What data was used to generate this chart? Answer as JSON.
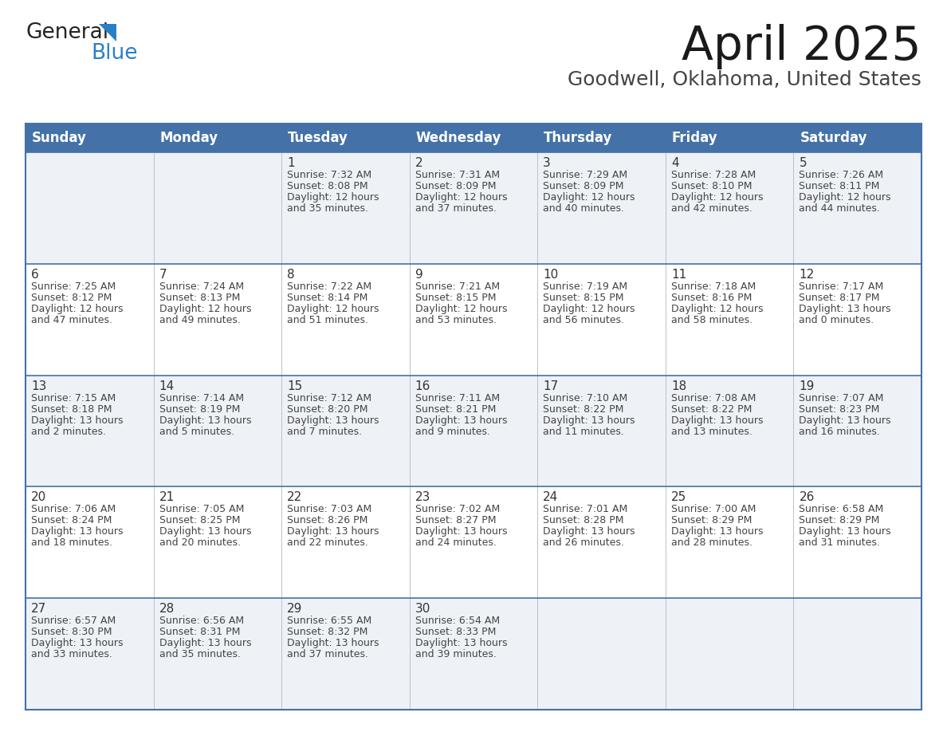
{
  "title": "April 2025",
  "subtitle": "Goodwell, Oklahoma, United States",
  "header_color": "#4472a8",
  "header_text_color": "#ffffff",
  "cell_bg_light": "#eef2f7",
  "cell_bg_white": "#ffffff",
  "border_color": "#4472a8",
  "row_line_color": "#4472a8",
  "text_color": "#333333",
  "info_color": "#444444",
  "days_of_week": [
    "Sunday",
    "Monday",
    "Tuesday",
    "Wednesday",
    "Thursday",
    "Friday",
    "Saturday"
  ],
  "weeks": [
    [
      {
        "day": "",
        "info": ""
      },
      {
        "day": "",
        "info": ""
      },
      {
        "day": "1",
        "info": "Sunrise: 7:32 AM\nSunset: 8:08 PM\nDaylight: 12 hours\nand 35 minutes."
      },
      {
        "day": "2",
        "info": "Sunrise: 7:31 AM\nSunset: 8:09 PM\nDaylight: 12 hours\nand 37 minutes."
      },
      {
        "day": "3",
        "info": "Sunrise: 7:29 AM\nSunset: 8:09 PM\nDaylight: 12 hours\nand 40 minutes."
      },
      {
        "day": "4",
        "info": "Sunrise: 7:28 AM\nSunset: 8:10 PM\nDaylight: 12 hours\nand 42 minutes."
      },
      {
        "day": "5",
        "info": "Sunrise: 7:26 AM\nSunset: 8:11 PM\nDaylight: 12 hours\nand 44 minutes."
      }
    ],
    [
      {
        "day": "6",
        "info": "Sunrise: 7:25 AM\nSunset: 8:12 PM\nDaylight: 12 hours\nand 47 minutes."
      },
      {
        "day": "7",
        "info": "Sunrise: 7:24 AM\nSunset: 8:13 PM\nDaylight: 12 hours\nand 49 minutes."
      },
      {
        "day": "8",
        "info": "Sunrise: 7:22 AM\nSunset: 8:14 PM\nDaylight: 12 hours\nand 51 minutes."
      },
      {
        "day": "9",
        "info": "Sunrise: 7:21 AM\nSunset: 8:15 PM\nDaylight: 12 hours\nand 53 minutes."
      },
      {
        "day": "10",
        "info": "Sunrise: 7:19 AM\nSunset: 8:15 PM\nDaylight: 12 hours\nand 56 minutes."
      },
      {
        "day": "11",
        "info": "Sunrise: 7:18 AM\nSunset: 8:16 PM\nDaylight: 12 hours\nand 58 minutes."
      },
      {
        "day": "12",
        "info": "Sunrise: 7:17 AM\nSunset: 8:17 PM\nDaylight: 13 hours\nand 0 minutes."
      }
    ],
    [
      {
        "day": "13",
        "info": "Sunrise: 7:15 AM\nSunset: 8:18 PM\nDaylight: 13 hours\nand 2 minutes."
      },
      {
        "day": "14",
        "info": "Sunrise: 7:14 AM\nSunset: 8:19 PM\nDaylight: 13 hours\nand 5 minutes."
      },
      {
        "day": "15",
        "info": "Sunrise: 7:12 AM\nSunset: 8:20 PM\nDaylight: 13 hours\nand 7 minutes."
      },
      {
        "day": "16",
        "info": "Sunrise: 7:11 AM\nSunset: 8:21 PM\nDaylight: 13 hours\nand 9 minutes."
      },
      {
        "day": "17",
        "info": "Sunrise: 7:10 AM\nSunset: 8:22 PM\nDaylight: 13 hours\nand 11 minutes."
      },
      {
        "day": "18",
        "info": "Sunrise: 7:08 AM\nSunset: 8:22 PM\nDaylight: 13 hours\nand 13 minutes."
      },
      {
        "day": "19",
        "info": "Sunrise: 7:07 AM\nSunset: 8:23 PM\nDaylight: 13 hours\nand 16 minutes."
      }
    ],
    [
      {
        "day": "20",
        "info": "Sunrise: 7:06 AM\nSunset: 8:24 PM\nDaylight: 13 hours\nand 18 minutes."
      },
      {
        "day": "21",
        "info": "Sunrise: 7:05 AM\nSunset: 8:25 PM\nDaylight: 13 hours\nand 20 minutes."
      },
      {
        "day": "22",
        "info": "Sunrise: 7:03 AM\nSunset: 8:26 PM\nDaylight: 13 hours\nand 22 minutes."
      },
      {
        "day": "23",
        "info": "Sunrise: 7:02 AM\nSunset: 8:27 PM\nDaylight: 13 hours\nand 24 minutes."
      },
      {
        "day": "24",
        "info": "Sunrise: 7:01 AM\nSunset: 8:28 PM\nDaylight: 13 hours\nand 26 minutes."
      },
      {
        "day": "25",
        "info": "Sunrise: 7:00 AM\nSunset: 8:29 PM\nDaylight: 13 hours\nand 28 minutes."
      },
      {
        "day": "26",
        "info": "Sunrise: 6:58 AM\nSunset: 8:29 PM\nDaylight: 13 hours\nand 31 minutes."
      }
    ],
    [
      {
        "day": "27",
        "info": "Sunrise: 6:57 AM\nSunset: 8:30 PM\nDaylight: 13 hours\nand 33 minutes."
      },
      {
        "day": "28",
        "info": "Sunrise: 6:56 AM\nSunset: 8:31 PM\nDaylight: 13 hours\nand 35 minutes."
      },
      {
        "day": "29",
        "info": "Sunrise: 6:55 AM\nSunset: 8:32 PM\nDaylight: 13 hours\nand 37 minutes."
      },
      {
        "day": "30",
        "info": "Sunrise: 6:54 AM\nSunset: 8:33 PM\nDaylight: 13 hours\nand 39 minutes."
      },
      {
        "day": "",
        "info": ""
      },
      {
        "day": "",
        "info": ""
      },
      {
        "day": "",
        "info": ""
      }
    ]
  ],
  "logo_text1": "General",
  "logo_text2": "Blue",
  "logo_color1": "#222222",
  "logo_color2": "#2980c9",
  "logo_tri_color": "#2980c9",
  "title_fontsize": 42,
  "subtitle_fontsize": 18,
  "header_fontsize": 12,
  "day_num_fontsize": 11,
  "info_fontsize": 9,
  "logo_fontsize1": 19,
  "logo_fontsize2": 19
}
